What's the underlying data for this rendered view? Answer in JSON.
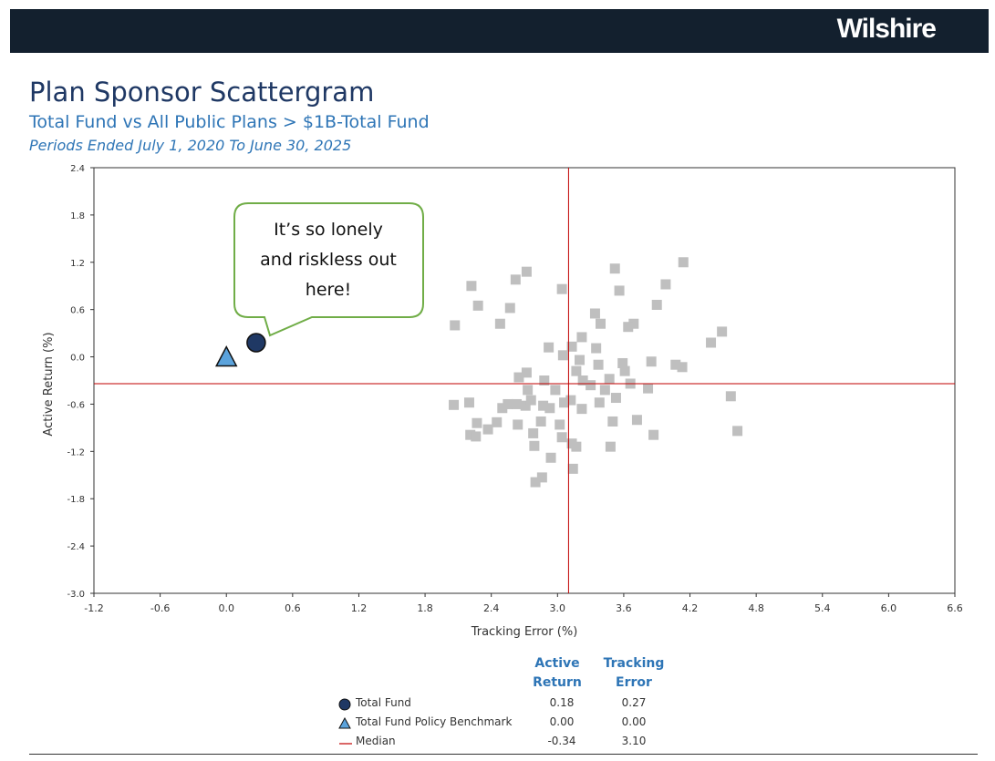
{
  "brand": "Wilshire",
  "title": "Plan Sponsor Scattergram",
  "subtitle": "Total Fund vs All Public Plans > $1B-Total Fund",
  "periods": "Periods Ended July 1, 2020 To June 30, 2025",
  "callout": {
    "line1": "It’s so lonely",
    "line2": "and riskless out",
    "line3": "here!",
    "border_color": "#70ad47"
  },
  "legend": {
    "col1_line1": "Active",
    "col1_line2": "Return",
    "col2_line1": "Tracking",
    "col2_line2": "Error",
    "rows": [
      {
        "label": "Total Fund",
        "symbol": "circle",
        "color": "#1f3864",
        "active_return": "0.18",
        "tracking_error": "0.27"
      },
      {
        "label": "Total Fund Policy Benchmark",
        "symbol": "triangle",
        "color": "#5ba3dc",
        "active_return": "0.00",
        "tracking_error": "0.00"
      },
      {
        "label": "Median",
        "symbol": "line",
        "color": "#c00000",
        "active_return": "-0.34",
        "tracking_error": "3.10"
      }
    ]
  },
  "chart_data": {
    "type": "scatter",
    "xlabel": "Tracking Error (%)",
    "ylabel": "Active Return (%)",
    "xlim": [
      -1.2,
      6.6
    ],
    "ylim": [
      -3.0,
      2.4
    ],
    "xticks": [
      "-1.2",
      "-0.6",
      "0.0",
      "0.6",
      "1.2",
      "1.8",
      "2.4",
      "3.0",
      "3.6",
      "4.2",
      "4.8",
      "5.4",
      "6.0",
      "6.6"
    ],
    "yticks": [
      "2.4",
      "1.8",
      "1.2",
      "0.6",
      "0.0",
      "-0.6",
      "-1.2",
      "-1.8",
      "-2.4",
      "-3.0"
    ],
    "median": {
      "x": 3.1,
      "y": -0.34,
      "color": "#c00000"
    },
    "highlight_points": [
      {
        "name": "Total Fund",
        "x": 0.27,
        "y": 0.18,
        "symbol": "circle",
        "color": "#1f3864"
      },
      {
        "name": "Total Fund Policy Benchmark",
        "x": 0.0,
        "y": 0.0,
        "symbol": "triangle",
        "color": "#5ba3dc"
      }
    ],
    "peer_color": "#bfbfbf",
    "peers": [
      [
        2.62,
        0.98
      ],
      [
        2.72,
        1.08
      ],
      [
        2.22,
        0.9
      ],
      [
        2.28,
        0.65
      ],
      [
        2.07,
        0.4
      ],
      [
        2.48,
        0.42
      ],
      [
        2.57,
        0.62
      ],
      [
        3.04,
        0.86
      ],
      [
        3.52,
        1.12
      ],
      [
        3.56,
        0.84
      ],
      [
        4.14,
        1.2
      ],
      [
        3.98,
        0.92
      ],
      [
        3.9,
        0.66
      ],
      [
        3.34,
        0.55
      ],
      [
        3.39,
        0.42
      ],
      [
        3.69,
        0.42
      ],
      [
        3.64,
        0.38
      ],
      [
        4.49,
        0.32
      ],
      [
        4.39,
        0.18
      ],
      [
        2.92,
        0.12
      ],
      [
        3.13,
        0.13
      ],
      [
        3.22,
        0.25
      ],
      [
        3.35,
        0.11
      ],
      [
        3.05,
        0.02
      ],
      [
        3.2,
        -0.04
      ],
      [
        3.37,
        -0.1
      ],
      [
        3.59,
        -0.08
      ],
      [
        3.85,
        -0.06
      ],
      [
        4.07,
        -0.1
      ],
      [
        4.13,
        -0.13
      ],
      [
        3.61,
        -0.18
      ],
      [
        3.17,
        -0.18
      ],
      [
        2.72,
        -0.2
      ],
      [
        2.65,
        -0.26
      ],
      [
        2.88,
        -0.3
      ],
      [
        3.23,
        -0.3
      ],
      [
        3.3,
        -0.36
      ],
      [
        3.47,
        -0.28
      ],
      [
        3.66,
        -0.34
      ],
      [
        3.82,
        -0.4
      ],
      [
        3.43,
        -0.42
      ],
      [
        2.73,
        -0.42
      ],
      [
        2.98,
        -0.42
      ],
      [
        2.2,
        -0.58
      ],
      [
        2.06,
        -0.61
      ],
      [
        2.55,
        -0.6
      ],
      [
        2.63,
        -0.6
      ],
      [
        2.71,
        -0.62
      ],
      [
        2.5,
        -0.65
      ],
      [
        2.76,
        -0.55
      ],
      [
        2.87,
        -0.62
      ],
      [
        2.93,
        -0.65
      ],
      [
        3.06,
        -0.58
      ],
      [
        3.12,
        -0.55
      ],
      [
        3.38,
        -0.58
      ],
      [
        3.22,
        -0.66
      ],
      [
        3.53,
        -0.52
      ],
      [
        4.57,
        -0.5
      ],
      [
        2.27,
        -0.84
      ],
      [
        2.45,
        -0.83
      ],
      [
        2.37,
        -0.92
      ],
      [
        2.64,
        -0.86
      ],
      [
        2.85,
        -0.82
      ],
      [
        3.02,
        -0.86
      ],
      [
        3.5,
        -0.82
      ],
      [
        3.72,
        -0.8
      ],
      [
        4.63,
        -0.94
      ],
      [
        2.21,
        -0.99
      ],
      [
        2.26,
        -1.01
      ],
      [
        2.78,
        -0.97
      ],
      [
        3.04,
        -1.02
      ],
      [
        3.13,
        -1.1
      ],
      [
        3.17,
        -1.14
      ],
      [
        3.87,
        -0.99
      ],
      [
        3.48,
        -1.14
      ],
      [
        2.79,
        -1.13
      ],
      [
        2.94,
        -1.28
      ],
      [
        3.14,
        -1.42
      ],
      [
        2.86,
        -1.53
      ],
      [
        2.8,
        -1.59
      ]
    ]
  }
}
